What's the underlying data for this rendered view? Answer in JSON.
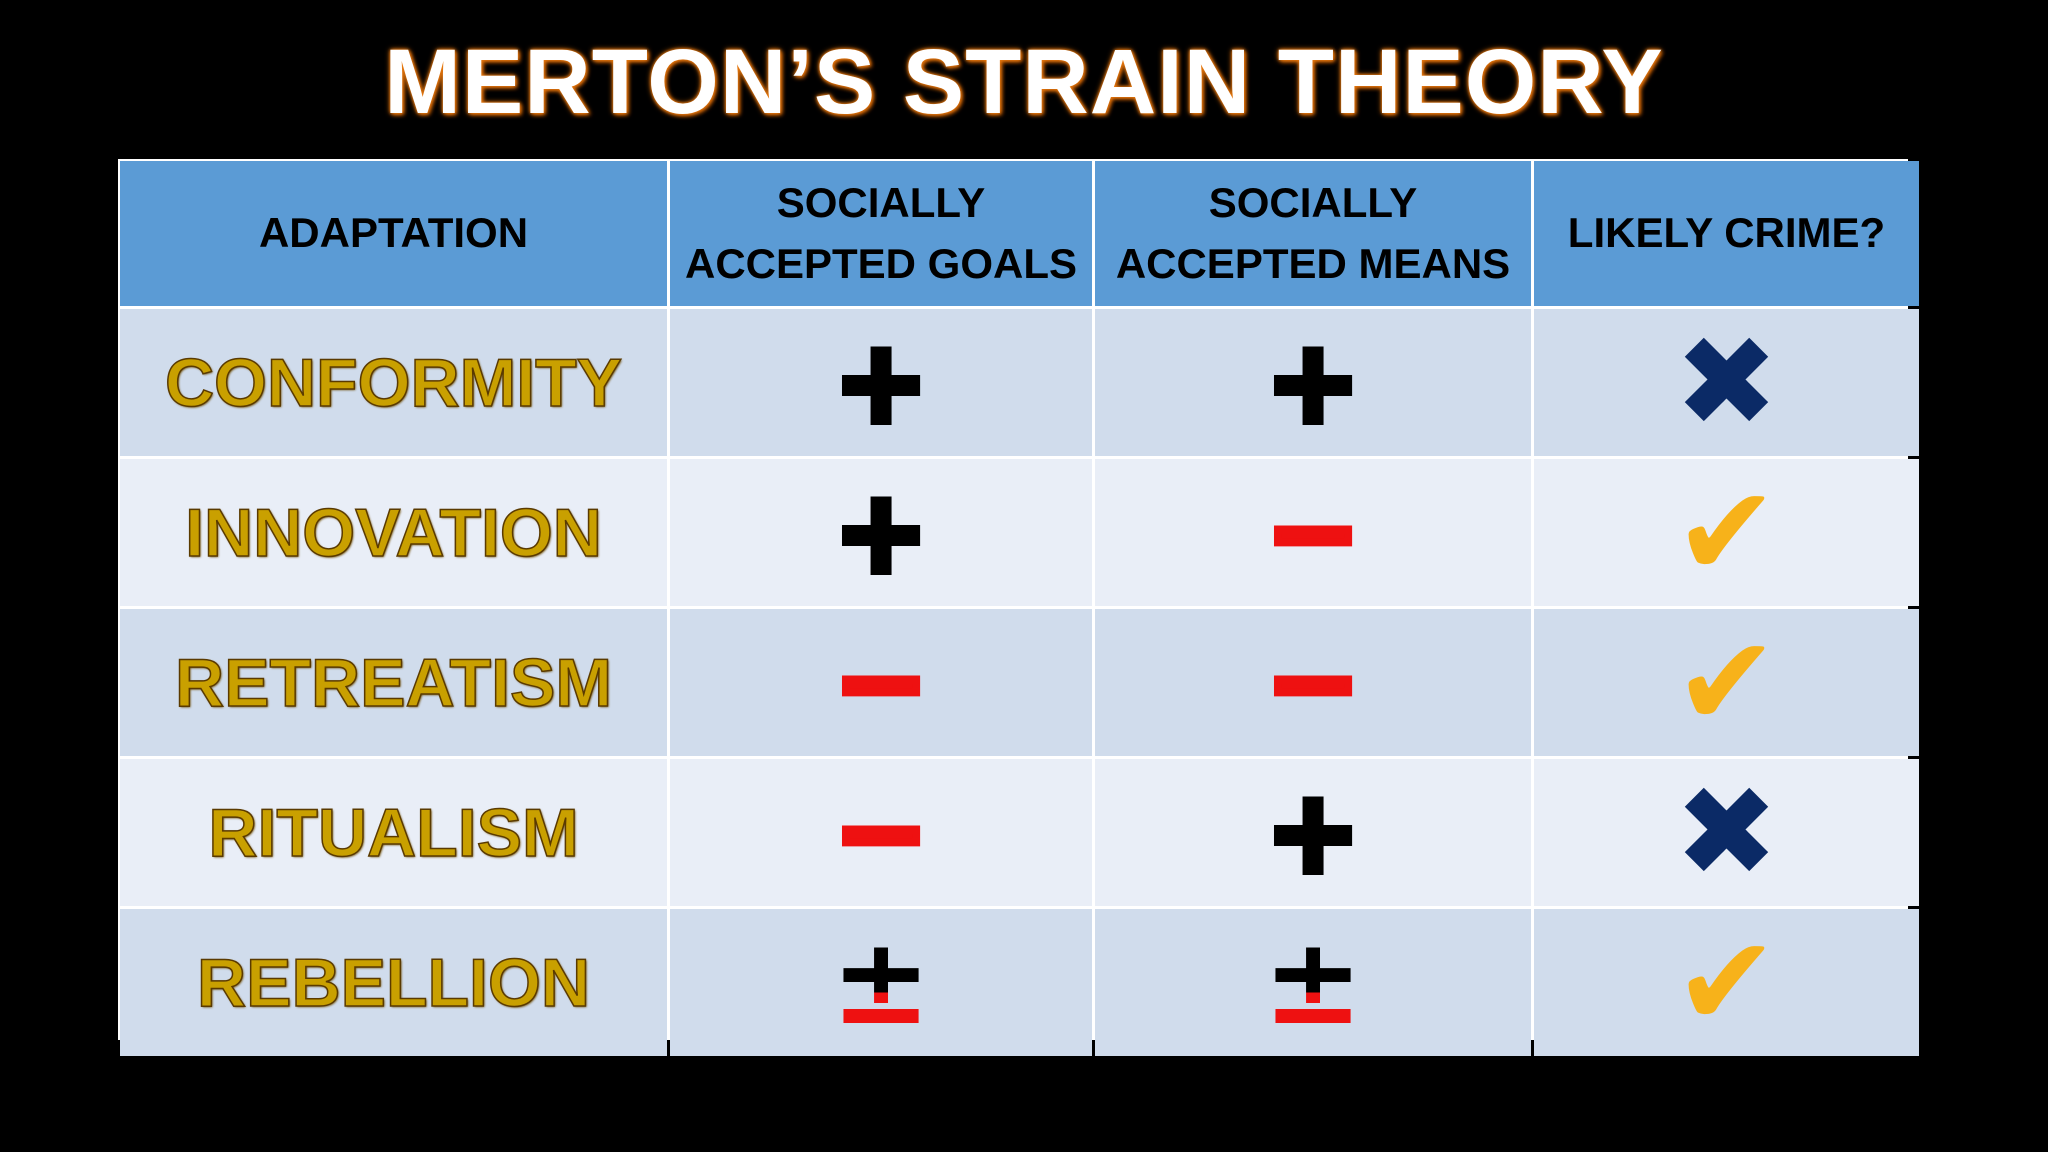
{
  "title": "MERTON’S STRAIN THEORY",
  "table": {
    "header": [
      "ADAPTATION",
      "SOCIALLY ACCEPTED GOALS",
      "SOCIALLY ACCEPTED MEANS",
      "LIKELY CRIME?"
    ],
    "rows": [
      [
        {
          "text": "CONFORMITY"
        },
        {
          "text": "+",
          "color": "#000000"
        },
        {
          "text": "+",
          "color": "#000000"
        },
        {
          "text": "✖",
          "color": "#0b2a66"
        }
      ],
      [
        {
          "text": "INNOVATION"
        },
        {
          "text": "+",
          "color": "#000000"
        },
        {
          "text": "−",
          "color": "#ee1111"
        },
        {
          "text": "✔",
          "color": "#f7b21a"
        }
      ],
      [
        {
          "text": "RETREATISM"
        },
        {
          "text": "−",
          "color": "#ee1111"
        },
        {
          "text": "−",
          "color": "#ee1111"
        },
        {
          "text": "✔",
          "color": "#f7b21a"
        }
      ],
      [
        {
          "text": "RITUALISM"
        },
        {
          "text": "−",
          "color": "#ee1111"
        },
        {
          "text": "+",
          "color": "#000000"
        },
        {
          "text": "✖",
          "color": "#0b2a66"
        }
      ],
      [
        {
          "text": "REBELLION"
        },
        {
          "text": "±",
          "color": [
            "#000000",
            "#ee1111"
          ]
        },
        {
          "text": "±",
          "color": [
            "#000000",
            "#ee1111"
          ]
        },
        {
          "text": "✔",
          "color": "#f7b21a"
        }
      ]
    ]
  }
}
